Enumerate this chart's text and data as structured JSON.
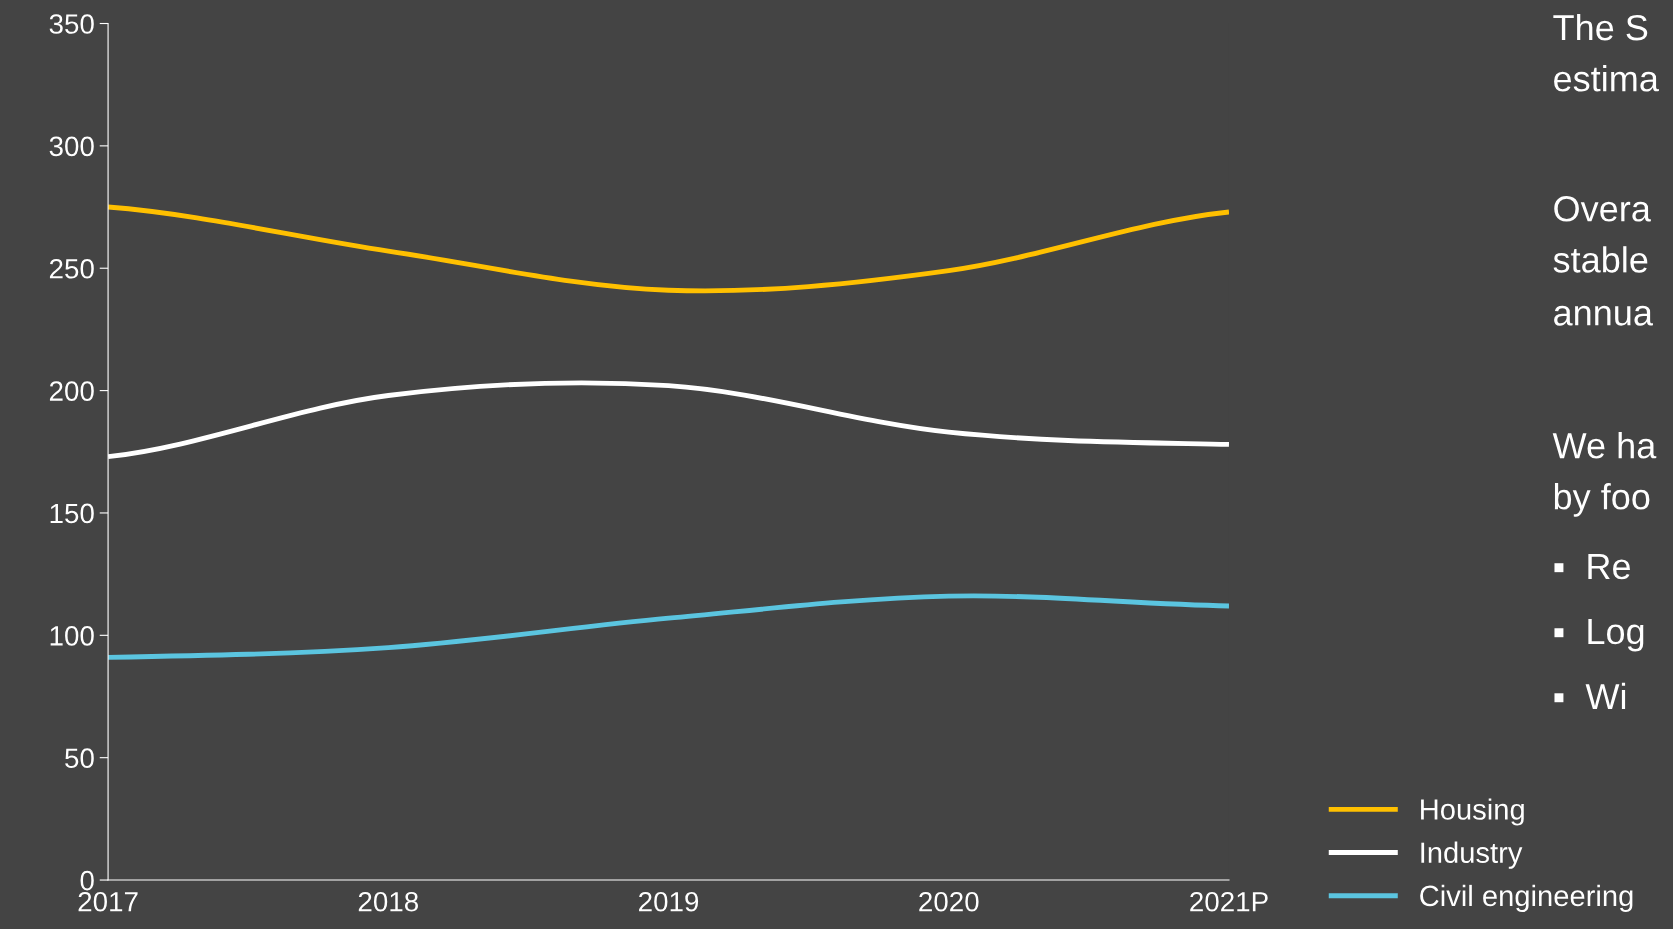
{
  "chart_data": {
    "type": "line",
    "categories": [
      "2017",
      "2018",
      "2019",
      "2020",
      "2021P"
    ],
    "series": [
      {
        "name": "Housing",
        "color": "#ffc000",
        "values": [
          275,
          257,
          241,
          249,
          273
        ]
      },
      {
        "name": "Industry",
        "color": "#ffffff",
        "values": [
          173,
          198,
          202,
          183,
          178
        ]
      },
      {
        "name": "Civil engineering",
        "color": "#5bc5e0",
        "values": [
          91,
          95,
          107,
          116,
          112
        ]
      }
    ],
    "ylim": [
      0,
      350
    ],
    "yticks": [
      0,
      50,
      100,
      150,
      200,
      250,
      300,
      350
    ],
    "grid": false,
    "legend": "bottom right",
    "marker": "none",
    "line_style": "solid",
    "annotations": [
      "The S",
      "estima",
      "Overa",
      "stable",
      "annua",
      "We ha",
      "by foo",
      "▪  Re",
      "▪  Log",
      "▪  Wi"
    ]
  }
}
